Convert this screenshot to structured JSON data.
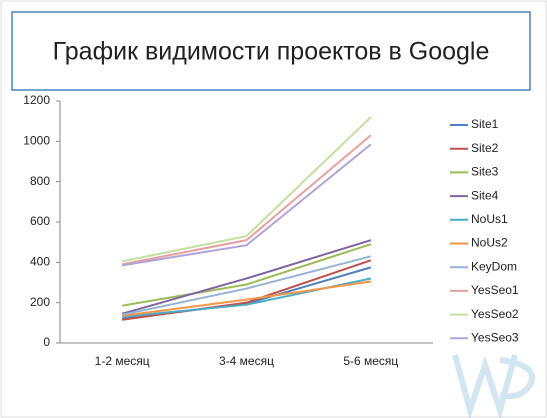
{
  "chart_data": {
    "type": "line",
    "title": "График видимости проектов в Google",
    "categories": [
      "1-2 месяц",
      "3-4 месяц",
      "5-6 месяц"
    ],
    "series": [
      {
        "name": "Site1",
        "color": "#4f81bd",
        "values": [
          120,
          195,
          375
        ]
      },
      {
        "name": "Site2",
        "color": "#c0504d",
        "values": [
          115,
          200,
          410
        ]
      },
      {
        "name": "Site3",
        "color": "#9bbb59",
        "values": [
          185,
          290,
          490
        ]
      },
      {
        "name": "Site4",
        "color": "#8064a2",
        "values": [
          145,
          320,
          510
        ]
      },
      {
        "name": "NoUs1",
        "color": "#4bacc6",
        "values": [
          130,
          190,
          320
        ]
      },
      {
        "name": "NoUs2",
        "color": "#f79646",
        "values": [
          135,
          215,
          305
        ]
      },
      {
        "name": "KeyDom",
        "color": "#95b3d7",
        "values": [
          140,
          270,
          430
        ]
      },
      {
        "name": "YesSeo1",
        "color": "#e6a0a0",
        "values": [
          390,
          510,
          1030
        ]
      },
      {
        "name": "YesSeo2",
        "color": "#c3e0a0",
        "values": [
          405,
          530,
          1120
        ]
      },
      {
        "name": "YesSeo3",
        "color": "#b3a2d7",
        "values": [
          385,
          485,
          985
        ]
      }
    ],
    "ylim": [
      0,
      1200
    ],
    "yticks": [
      0,
      200,
      400,
      600,
      800,
      1000,
      1200
    ],
    "grid": false
  }
}
